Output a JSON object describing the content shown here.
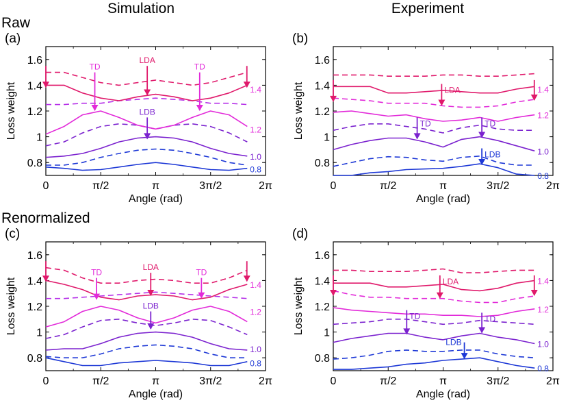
{
  "figure": {
    "col_titles": [
      "Simulation",
      "Experiment"
    ],
    "row_titles": [
      "Raw",
      "Renormalized"
    ]
  },
  "colors": {
    "c0.8": "#1d38d6",
    "c1.0": "#7b22cf",
    "c1.2": "#e22ad9",
    "c1.4": "#e0196b"
  },
  "chart_data": [
    {
      "panel": "(a)",
      "type": "line",
      "xlabel": "Angle (rad)",
      "ylabel": "Loss weight",
      "xlim": [
        0,
        6.2832
      ],
      "ylim": [
        0.7,
        1.7
      ],
      "xticks": [
        0,
        1.5708,
        3.1416,
        4.7124,
        6.2832
      ],
      "xtick_labels": [
        "0",
        "π/2",
        "π",
        "3π/2",
        "2π"
      ],
      "yticks": [
        0.8,
        1,
        1.2,
        1.4,
        1.6
      ],
      "ytick_labels": [
        "0.8",
        "1",
        "1.2",
        "1.4",
        "1.6"
      ],
      "x": [
        0,
        0.52,
        1.05,
        1.57,
        2.09,
        2.62,
        3.14,
        3.67,
        4.19,
        4.71,
        5.24,
        5.76
      ],
      "series": [
        {
          "values": [
            0.765,
            0.755,
            0.74,
            0.745,
            0.765,
            0.785,
            0.8,
            0.785,
            0.765,
            0.745,
            0.74,
            0.755
          ],
          "color": "#1d38d6",
          "dash": false
        },
        {
          "values": [
            0.78,
            0.78,
            0.8,
            0.84,
            0.87,
            0.895,
            0.905,
            0.895,
            0.87,
            0.84,
            0.8,
            0.78
          ],
          "color": "#1d38d6",
          "dash": true
        },
        {
          "values": [
            0.84,
            0.85,
            0.87,
            0.91,
            0.96,
            0.99,
            1.0,
            0.99,
            0.96,
            0.91,
            0.87,
            0.85
          ],
          "color": "#7b22cf",
          "dash": false
        },
        {
          "values": [
            0.93,
            0.96,
            1.03,
            1.08,
            1.1,
            1.09,
            1.06,
            1.09,
            1.1,
            1.08,
            1.03,
            0.96
          ],
          "color": "#7b22cf",
          "dash": true
        },
        {
          "values": [
            1.02,
            1.08,
            1.17,
            1.2,
            1.15,
            1.09,
            1.06,
            1.09,
            1.15,
            1.2,
            1.17,
            1.08
          ],
          "color": "#e22ad9",
          "dash": false
        },
        {
          "values": [
            1.25,
            1.25,
            1.26,
            1.26,
            1.28,
            1.29,
            1.3,
            1.29,
            1.28,
            1.26,
            1.26,
            1.25
          ],
          "color": "#b52ee8",
          "dash": true
        },
        {
          "values": [
            1.4,
            1.4,
            1.34,
            1.3,
            1.28,
            1.31,
            1.33,
            1.31,
            1.28,
            1.3,
            1.34,
            1.4
          ],
          "color": "#e0196b",
          "dash": false
        },
        {
          "values": [
            1.5,
            1.5,
            1.46,
            1.42,
            1.4,
            1.42,
            1.44,
            1.42,
            1.4,
            1.42,
            1.46,
            1.5
          ],
          "color": "#e0196b",
          "dash": true
        }
      ],
      "right_labels": [
        {
          "text": "1.4",
          "y": 1.37,
          "color": "#e22ad9"
        },
        {
          "text": "1.2",
          "y": 1.06,
          "color": "#e22ad9"
        },
        {
          "text": "1.0",
          "y": 0.85,
          "color": "#7b22cf"
        },
        {
          "text": "0.8",
          "y": 0.75,
          "color": "#1d38d6"
        }
      ],
      "arrows": [
        {
          "text": "TD",
          "x": 1.4,
          "y_top": 1.5,
          "y_tip": 1.2,
          "color": "#e22ad9",
          "label_pos": "top"
        },
        {
          "text": "LDA",
          "x": 2.9,
          "y_top": 1.55,
          "y_tip": 1.32,
          "color": "#e0196b",
          "label_pos": "top"
        },
        {
          "text": "TD",
          "x": 4.4,
          "y_top": 1.5,
          "y_tip": 1.2,
          "color": "#e22ad9",
          "label_pos": "top"
        },
        {
          "text": "LDB",
          "x": 2.9,
          "y_top": 1.15,
          "y_tip": 0.98,
          "color": "#7b22cf",
          "label_pos": "top"
        },
        {
          "text": "",
          "x": 0.0,
          "y_top": 1.55,
          "y_tip": 1.38,
          "color": "#e0196b",
          "label_pos": "top"
        },
        {
          "text": "",
          "x": 5.75,
          "y_top": 1.55,
          "y_tip": 1.38,
          "color": "#e0196b",
          "label_pos": "top"
        }
      ]
    },
    {
      "panel": "(b)",
      "type": "line",
      "xlabel": "Angle (rad)",
      "ylabel": "Loss weight",
      "xlim": [
        0,
        6.2832
      ],
      "ylim": [
        0.7,
        1.7
      ],
      "xticks": [
        0,
        1.5708,
        3.1416,
        4.7124,
        6.2832
      ],
      "xtick_labels": [
        "0",
        "π/2",
        "π",
        "3π/2",
        "2π"
      ],
      "yticks": [
        0.8,
        1,
        1.2,
        1.4,
        1.6
      ],
      "ytick_labels": [
        "0.8",
        "1",
        "1.2",
        "1.4",
        "1.6"
      ],
      "x": [
        0,
        0.52,
        1.05,
        1.57,
        2.09,
        2.62,
        3.14,
        3.67,
        4.19,
        4.71,
        5.24,
        5.76
      ],
      "series": [
        {
          "values": [
            0.7,
            0.7,
            0.72,
            0.73,
            0.745,
            0.75,
            0.755,
            0.77,
            0.79,
            0.76,
            0.71,
            0.7
          ],
          "color": "#1d38d6",
          "dash": false
        },
        {
          "values": [
            0.77,
            0.8,
            0.83,
            0.845,
            0.84,
            0.82,
            0.81,
            0.84,
            0.85,
            0.8,
            0.78,
            0.78
          ],
          "color": "#1d38d6",
          "dash": true
        },
        {
          "values": [
            0.9,
            0.94,
            0.97,
            0.99,
            0.99,
            0.96,
            0.92,
            0.98,
            1.0,
            0.97,
            0.93,
            0.89
          ],
          "color": "#7b22cf",
          "dash": false
        },
        {
          "values": [
            1.05,
            1.08,
            1.1,
            1.1,
            1.08,
            1.06,
            1.03,
            1.07,
            1.09,
            1.06,
            1.05,
            1.05
          ],
          "color": "#7b22cf",
          "dash": true
        },
        {
          "values": [
            1.19,
            1.2,
            1.18,
            1.16,
            1.17,
            1.14,
            1.12,
            1.13,
            1.15,
            1.12,
            1.15,
            1.17
          ],
          "color": "#e22ad9",
          "dash": false
        },
        {
          "values": [
            1.3,
            1.29,
            1.28,
            1.26,
            1.26,
            1.26,
            1.24,
            1.23,
            1.23,
            1.24,
            1.27,
            1.29
          ],
          "color": "#e22ad9",
          "dash": true
        },
        {
          "values": [
            1.39,
            1.39,
            1.39,
            1.34,
            1.34,
            1.35,
            1.36,
            1.35,
            1.34,
            1.34,
            1.37,
            1.39
          ],
          "color": "#e0196b",
          "dash": false
        },
        {
          "values": [
            1.48,
            1.48,
            1.48,
            1.47,
            1.47,
            1.47,
            1.48,
            1.48,
            1.47,
            1.47,
            1.48,
            1.49
          ],
          "color": "#e0196b",
          "dash": true
        }
      ],
      "right_labels": [
        {
          "text": "1.4",
          "y": 1.37,
          "color": "#e22ad9"
        },
        {
          "text": "1.2",
          "y": 1.17,
          "color": "#e22ad9"
        },
        {
          "text": "1.0",
          "y": 0.89,
          "color": "#7b22cf"
        },
        {
          "text": "0.8",
          "y": 0.7,
          "color": "#1d38d6"
        }
      ],
      "arrows": [
        {
          "text": "TD",
          "x": 2.4,
          "y_top": 1.15,
          "y_tip": 0.98,
          "color": "#7b22cf",
          "label_pos": "right"
        },
        {
          "text": "TD",
          "x": 4.25,
          "y_top": 1.15,
          "y_tip": 0.99,
          "color": "#7b22cf",
          "label_pos": "right"
        },
        {
          "text": "LDA",
          "x": 3.1,
          "y_top": 1.41,
          "y_tip": 1.24,
          "color": "#e0196b",
          "label_pos": "right"
        },
        {
          "text": "LDB",
          "x": 4.25,
          "y_top": 0.91,
          "y_tip": 0.78,
          "color": "#1d38d6",
          "label_pos": "right"
        },
        {
          "text": "",
          "x": 0.0,
          "y_top": 1.44,
          "y_tip": 1.27,
          "color": "#e0196b",
          "label_pos": "top"
        },
        {
          "text": "",
          "x": 5.75,
          "y_top": 1.44,
          "y_tip": 1.28,
          "color": "#e0196b",
          "label_pos": "top"
        }
      ]
    },
    {
      "panel": "(c)",
      "type": "line",
      "xlabel": "Angle (rad)",
      "ylabel": "Loss weight",
      "xlim": [
        0,
        6.2832
      ],
      "ylim": [
        0.7,
        1.7
      ],
      "xticks": [
        0,
        1.5708,
        3.1416,
        4.7124,
        6.2832
      ],
      "xtick_labels": [
        "0",
        "π/2",
        "π",
        "3π/2",
        "2π"
      ],
      "yticks": [
        0.8,
        1,
        1.2,
        1.4,
        1.6
      ],
      "ytick_labels": [
        "0.8",
        "1",
        "1.2",
        "1.4",
        "1.6"
      ],
      "x": [
        0,
        0.52,
        1.05,
        1.57,
        2.09,
        2.62,
        3.14,
        3.67,
        4.19,
        4.71,
        5.24,
        5.76
      ],
      "series": [
        {
          "values": [
            0.8,
            0.77,
            0.74,
            0.74,
            0.76,
            0.77,
            0.78,
            0.77,
            0.76,
            0.74,
            0.74,
            0.77
          ],
          "color": "#1d38d6",
          "dash": false
        },
        {
          "values": [
            0.81,
            0.8,
            0.8,
            0.83,
            0.87,
            0.89,
            0.9,
            0.89,
            0.87,
            0.83,
            0.8,
            0.8
          ],
          "color": "#1d38d6",
          "dash": true
        },
        {
          "values": [
            0.86,
            0.87,
            0.87,
            0.91,
            0.96,
            0.99,
            1.0,
            0.99,
            0.96,
            0.91,
            0.87,
            0.86
          ],
          "color": "#7b22cf",
          "dash": false
        },
        {
          "values": [
            0.95,
            0.98,
            1.04,
            1.09,
            1.1,
            1.07,
            1.05,
            1.07,
            1.1,
            1.09,
            1.04,
            0.98
          ],
          "color": "#7b22cf",
          "dash": true
        },
        {
          "values": [
            1.04,
            1.08,
            1.16,
            1.2,
            1.17,
            1.11,
            1.07,
            1.11,
            1.17,
            1.2,
            1.16,
            1.08
          ],
          "color": "#e22ad9",
          "dash": false
        },
        {
          "values": [
            1.26,
            1.26,
            1.27,
            1.28,
            1.29,
            1.3,
            1.31,
            1.3,
            1.29,
            1.28,
            1.27,
            1.26
          ],
          "color": "#b52ee8",
          "dash": true
        },
        {
          "values": [
            1.4,
            1.37,
            1.33,
            1.27,
            1.25,
            1.28,
            1.29,
            1.28,
            1.25,
            1.27,
            1.33,
            1.37
          ],
          "color": "#e0196b",
          "dash": false
        },
        {
          "values": [
            1.5,
            1.48,
            1.42,
            1.38,
            1.38,
            1.4,
            1.41,
            1.4,
            1.38,
            1.38,
            1.42,
            1.48
          ],
          "color": "#e0196b",
          "dash": true
        }
      ],
      "right_labels": [
        {
          "text": "1.4",
          "y": 1.37,
          "color": "#e22ad9"
        },
        {
          "text": "1.2",
          "y": 1.16,
          "color": "#e22ad9"
        },
        {
          "text": "1.0",
          "y": 0.87,
          "color": "#7b22cf"
        },
        {
          "text": "0.8",
          "y": 0.76,
          "color": "#1d38d6"
        }
      ],
      "arrows": [
        {
          "text": "TD",
          "x": 1.45,
          "y_top": 1.42,
          "y_tip": 1.25,
          "color": "#e22ad9",
          "label_pos": "top"
        },
        {
          "text": "LDA",
          "x": 3.0,
          "y_top": 1.46,
          "y_tip": 1.28,
          "color": "#e0196b",
          "label_pos": "top"
        },
        {
          "text": "TD",
          "x": 4.45,
          "y_top": 1.42,
          "y_tip": 1.26,
          "color": "#e22ad9",
          "label_pos": "top"
        },
        {
          "text": "LDB",
          "x": 3.0,
          "y_top": 1.16,
          "y_tip": 1.02,
          "color": "#7b22cf",
          "label_pos": "top"
        },
        {
          "text": "",
          "x": 0.0,
          "y_top": 1.55,
          "y_tip": 1.39,
          "color": "#e0196b",
          "label_pos": "top"
        },
        {
          "text": "",
          "x": 5.75,
          "y_top": 1.55,
          "y_tip": 1.39,
          "color": "#e0196b",
          "label_pos": "top"
        }
      ]
    },
    {
      "panel": "(d)",
      "type": "line",
      "xlabel": "Angle (rad)",
      "ylabel": "Loss weight",
      "xlim": [
        0,
        6.2832
      ],
      "ylim": [
        0.7,
        1.7
      ],
      "xticks": [
        0,
        1.5708,
        3.1416,
        4.7124,
        6.2832
      ],
      "xtick_labels": [
        "0",
        "π/2",
        "π",
        "3π/2",
        "2π"
      ],
      "yticks": [
        0.8,
        1,
        1.2,
        1.4,
        1.6
      ],
      "ytick_labels": [
        "0.8",
        "1",
        "1.2",
        "1.4",
        "1.6"
      ],
      "x": [
        0,
        0.52,
        1.05,
        1.57,
        2.09,
        2.62,
        3.14,
        3.67,
        4.19,
        4.71,
        5.24,
        5.76
      ],
      "series": [
        {
          "values": [
            0.71,
            0.71,
            0.72,
            0.73,
            0.75,
            0.76,
            0.78,
            0.79,
            0.8,
            0.77,
            0.74,
            0.72
          ],
          "color": "#1d38d6",
          "dash": false
        },
        {
          "values": [
            0.79,
            0.8,
            0.82,
            0.85,
            0.86,
            0.85,
            0.85,
            0.86,
            0.86,
            0.83,
            0.81,
            0.8
          ],
          "color": "#1d38d6",
          "dash": true
        },
        {
          "values": [
            0.92,
            0.95,
            0.97,
            0.99,
            0.99,
            0.96,
            0.94,
            0.97,
            0.99,
            0.96,
            0.94,
            0.91
          ],
          "color": "#7b22cf",
          "dash": false
        },
        {
          "values": [
            1.06,
            1.07,
            1.08,
            1.1,
            1.1,
            1.08,
            1.06,
            1.07,
            1.09,
            1.08,
            1.07,
            1.06
          ],
          "color": "#7b22cf",
          "dash": true
        },
        {
          "values": [
            1.19,
            1.17,
            1.16,
            1.15,
            1.14,
            1.14,
            1.13,
            1.13,
            1.12,
            1.13,
            1.16,
            1.18
          ],
          "color": "#e22ad9",
          "dash": false
        },
        {
          "values": [
            1.32,
            1.29,
            1.27,
            1.27,
            1.26,
            1.26,
            1.26,
            1.24,
            1.23,
            1.23,
            1.26,
            1.28
          ],
          "color": "#e22ad9",
          "dash": true
        },
        {
          "values": [
            1.38,
            1.38,
            1.38,
            1.35,
            1.35,
            1.36,
            1.37,
            1.33,
            1.32,
            1.34,
            1.38,
            1.4
          ],
          "color": "#e0196b",
          "dash": false
        },
        {
          "values": [
            1.48,
            1.48,
            1.47,
            1.47,
            1.47,
            1.48,
            1.49,
            1.46,
            1.46,
            1.47,
            1.48,
            1.48
          ],
          "color": "#e0196b",
          "dash": true
        }
      ],
      "right_labels": [
        {
          "text": "1.4",
          "y": 1.4,
          "color": "#e22ad9"
        },
        {
          "text": "1.2",
          "y": 1.18,
          "color": "#e22ad9"
        },
        {
          "text": "1.0",
          "y": 0.91,
          "color": "#7b22cf"
        },
        {
          "text": "0.8",
          "y": 0.72,
          "color": "#1d38d6"
        }
      ],
      "arrows": [
        {
          "text": "TD",
          "x": 2.1,
          "y_top": 1.17,
          "y_tip": 0.98,
          "color": "#7b22cf",
          "label_pos": "right"
        },
        {
          "text": "TD",
          "x": 4.25,
          "y_top": 1.15,
          "y_tip": 0.99,
          "color": "#7b22cf",
          "label_pos": "right"
        },
        {
          "text": "LDA",
          "x": 3.05,
          "y_top": 1.44,
          "y_tip": 1.26,
          "color": "#e0196b",
          "label_pos": "right"
        },
        {
          "text": "LDB",
          "x": 3.75,
          "y_top": 0.92,
          "y_tip": 0.79,
          "color": "#1d38d6",
          "label_pos": "left"
        },
        {
          "text": "",
          "x": 0.0,
          "y_top": 1.44,
          "y_tip": 1.28,
          "color": "#e0196b",
          "label_pos": "top"
        },
        {
          "text": "",
          "x": 5.75,
          "y_top": 1.44,
          "y_tip": 1.28,
          "color": "#e0196b",
          "label_pos": "top"
        }
      ]
    }
  ]
}
